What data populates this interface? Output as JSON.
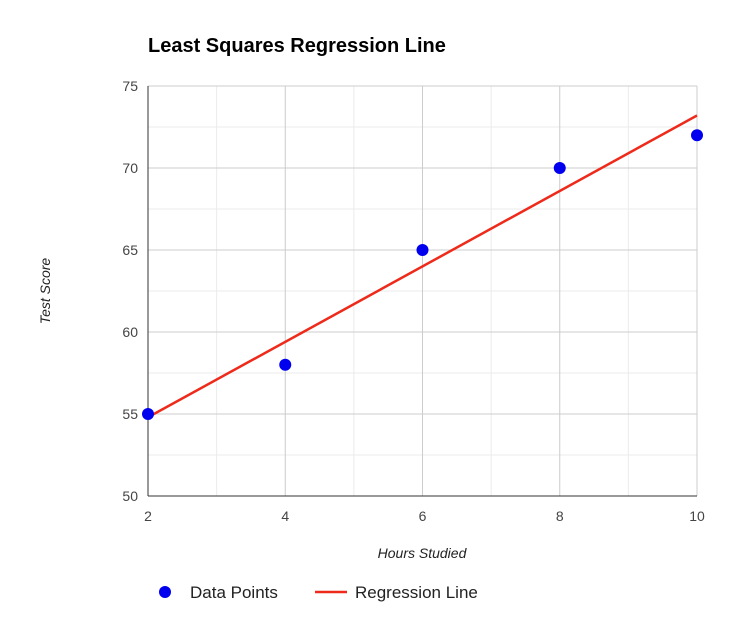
{
  "chart_data": {
    "type": "scatter",
    "title": "Least Squares Regression Line",
    "xlabel": "Hours Studied",
    "ylabel": "Test Score",
    "xlim": [
      2,
      10
    ],
    "ylim": [
      50,
      75
    ],
    "x_ticks": [
      2,
      4,
      6,
      8,
      10
    ],
    "x_minor_ticks": [
      3,
      5,
      7,
      9
    ],
    "y_ticks": [
      50,
      55,
      60,
      65,
      70,
      75
    ],
    "y_minor_ticks": [
      52.5,
      57.5,
      62.5,
      67.5,
      72.5
    ],
    "grid": true,
    "legend_position": "bottom",
    "series": [
      {
        "name": "Data Points",
        "kind": "scatter",
        "color": "#0000ee",
        "points": [
          {
            "x": 2,
            "y": 55
          },
          {
            "x": 4,
            "y": 58
          },
          {
            "x": 6,
            "y": 65
          },
          {
            "x": 8,
            "y": 70
          },
          {
            "x": 10,
            "y": 72
          }
        ]
      },
      {
        "name": "Regression Line",
        "kind": "line",
        "color": "#ee2a1b",
        "points": [
          {
            "x": 2,
            "y": 54.8
          },
          {
            "x": 10,
            "y": 73.2
          }
        ]
      }
    ]
  }
}
